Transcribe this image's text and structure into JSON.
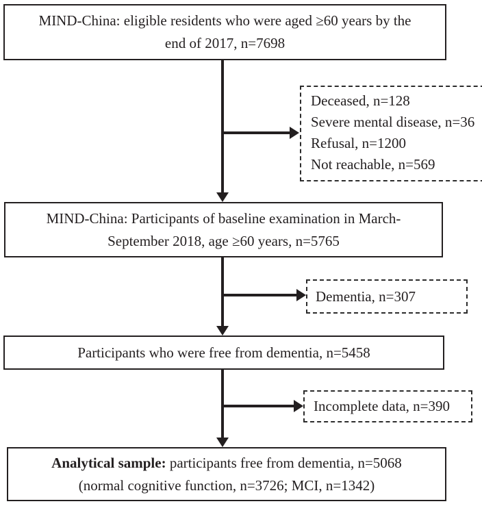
{
  "flowchart": {
    "box_eligible": {
      "line1": "MIND-China: eligible residents who were aged ≥60 years by the",
      "line2": "end of 2017, n=7698"
    },
    "box_exclusions_baseline": {
      "items": [
        "Deceased, n=128",
        "Severe mental disease, n=36",
        "Refusal, n=1200",
        "Not reachable, n=569"
      ]
    },
    "box_baseline": {
      "line1": "MIND-China: Participants of baseline examination in March-",
      "line2": "September 2018, age ≥60 years, n=5765"
    },
    "box_dementia_excluded": {
      "label": "Dementia, n=307"
    },
    "box_dementia_free": {
      "label": "Participants who were free from dementia, n=5458"
    },
    "box_incomplete_excluded": {
      "label": "Incomplete data, n=390"
    },
    "box_analytical": {
      "bold_prefix": "Analytical sample:",
      "line1_rest": " participants free from dementia, n=5068",
      "line2": "(normal cognitive function, n=3726; MCI, n=1342)"
    },
    "colors": {
      "text": "#231f20",
      "solid_border": "#231f20",
      "dashed_border": "#2b2b2b",
      "background": "#ffffff"
    }
  }
}
